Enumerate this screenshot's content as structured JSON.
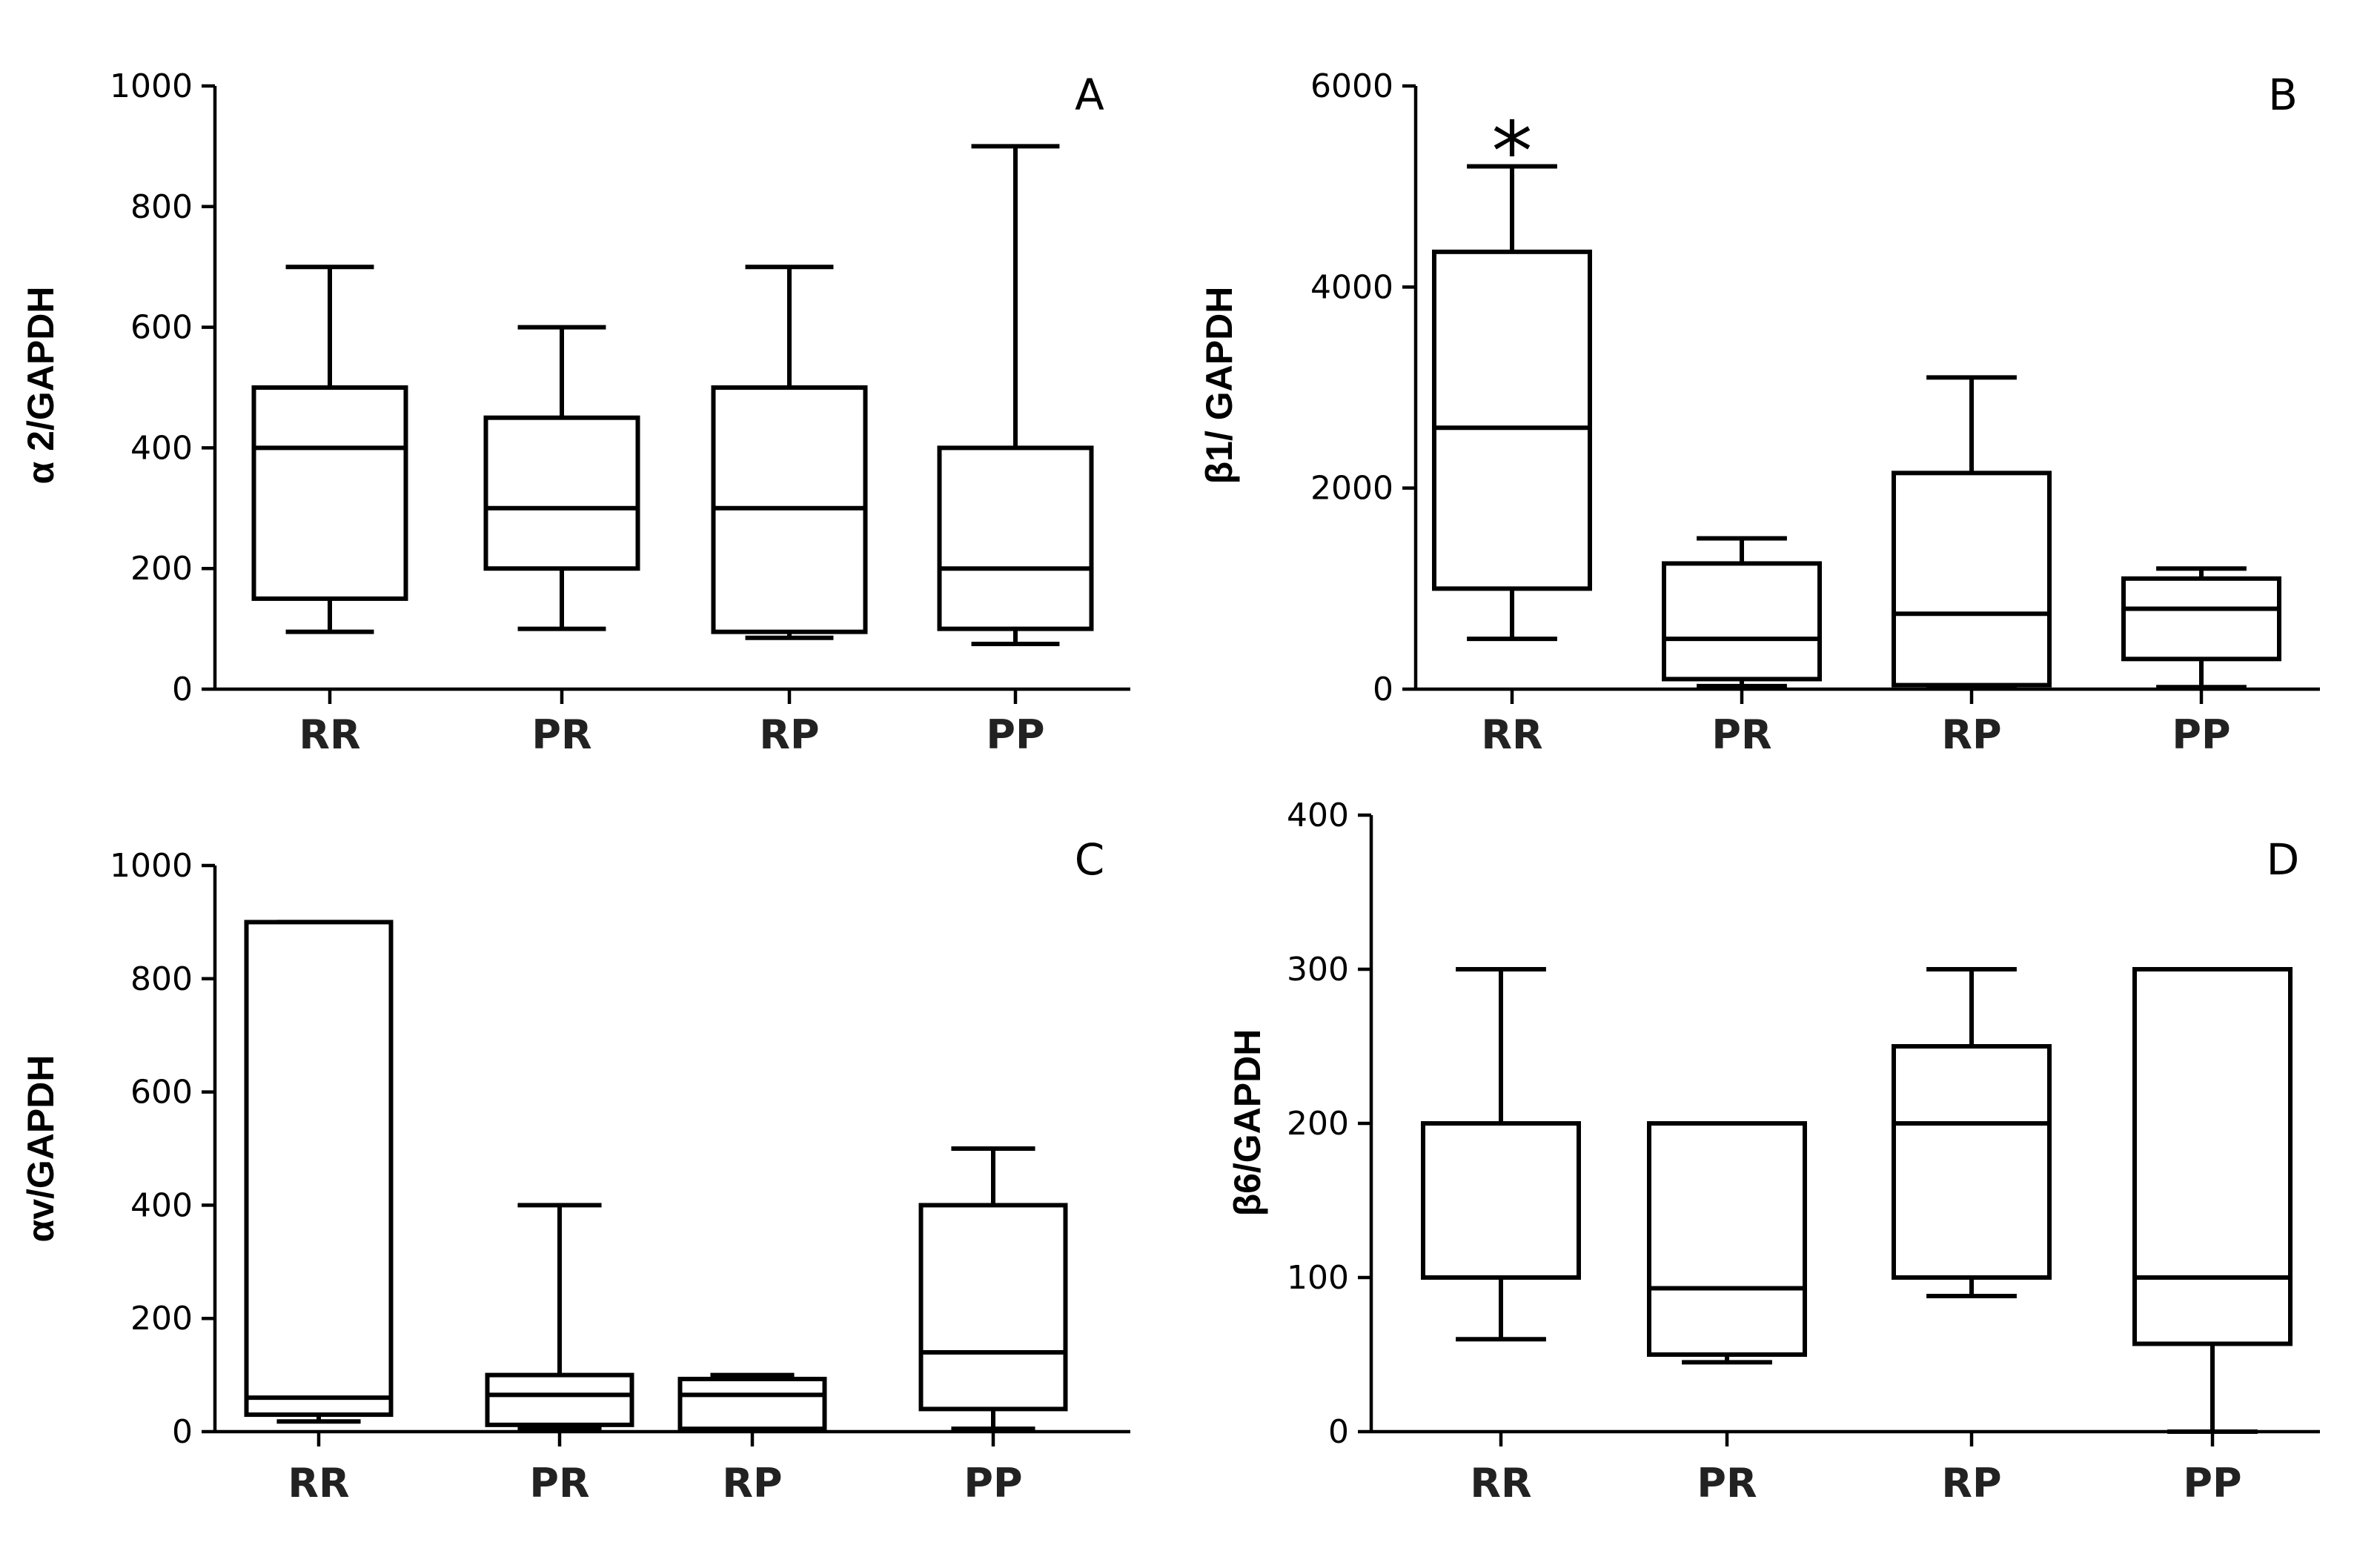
{
  "chart_data": [
    {
      "type": "boxplot",
      "panel_label": "A",
      "ylabel": "α 2/GAPDH",
      "ylim": [
        0,
        1000
      ],
      "yticks": [
        "0",
        "200",
        "400",
        "600",
        "800",
        "1000"
      ],
      "categories": [
        "RR",
        "PR",
        "RP",
        "PP"
      ],
      "boxes": [
        {
          "min": 95,
          "q1": 150,
          "median": 400,
          "q3": 500,
          "max": 700
        },
        {
          "min": 100,
          "q1": 200,
          "median": 300,
          "q3": 450,
          "max": 600
        },
        {
          "min": 85,
          "q1": 95,
          "median": 300,
          "q3": 500,
          "max": 700
        },
        {
          "min": 75,
          "q1": 100,
          "median": 200,
          "q3": 400,
          "max": 900
        }
      ]
    },
    {
      "type": "boxplot",
      "panel_label": "B",
      "ylabel": "β1/ GAPDH",
      "ylim": [
        0,
        6000
      ],
      "yticks": [
        "0",
        "2000",
        "4000",
        "6000"
      ],
      "categories": [
        "RR",
        "PR",
        "RP",
        "PP"
      ],
      "boxes": [
        {
          "min": 500,
          "q1": 1000,
          "median": 2600,
          "q3": 4350,
          "max": 5200
        },
        {
          "min": 30,
          "q1": 100,
          "median": 500,
          "q3": 1250,
          "max": 1500
        },
        {
          "min": 20,
          "q1": 40,
          "median": 750,
          "q3": 2150,
          "max": 3100
        },
        {
          "min": 20,
          "q1": 300,
          "median": 800,
          "q3": 1100,
          "max": 1200
        }
      ],
      "annotations": [
        {
          "category": "RR",
          "text": "*"
        }
      ]
    },
    {
      "type": "boxplot",
      "panel_label": "C",
      "ylabel": "αv/GAPDH",
      "ylim": [
        0,
        1000
      ],
      "yticks": [
        "0",
        "200",
        "400",
        "600",
        "800",
        "1000"
      ],
      "categories": [
        "RR",
        "PR",
        "RP",
        "PP"
      ],
      "boxes": [
        {
          "min": 18,
          "q1": 30,
          "median": 60,
          "q3": 900,
          "max": 900
        },
        {
          "min": 5,
          "q1": 12,
          "median": 65,
          "q3": 100,
          "max": 400
        },
        {
          "min": 3,
          "q1": 5,
          "median": 65,
          "q3": 93,
          "max": 100
        },
        {
          "min": 5,
          "q1": 40,
          "median": 140,
          "q3": 400,
          "max": 500
        }
      ]
    },
    {
      "type": "boxplot",
      "panel_label": "D",
      "ylabel": "β6/GAPDH",
      "ylim": [
        0,
        400
      ],
      "yticks": [
        "0",
        "100",
        "200",
        "300",
        "400"
      ],
      "categories": [
        "RR",
        "PR",
        "RP",
        "PP"
      ],
      "boxes": [
        {
          "min": 60,
          "q1": 100,
          "median": 100,
          "q3": 200,
          "max": 300
        },
        {
          "min": 45,
          "q1": 50,
          "median": 93,
          "q3": 200,
          "max": 200
        },
        {
          "min": 88,
          "q1": 100,
          "median": 200,
          "q3": 250,
          "max": 300
        },
        {
          "min": 0,
          "q1": 57,
          "median": 100,
          "q3": 300,
          "max": 300
        }
      ]
    }
  ]
}
